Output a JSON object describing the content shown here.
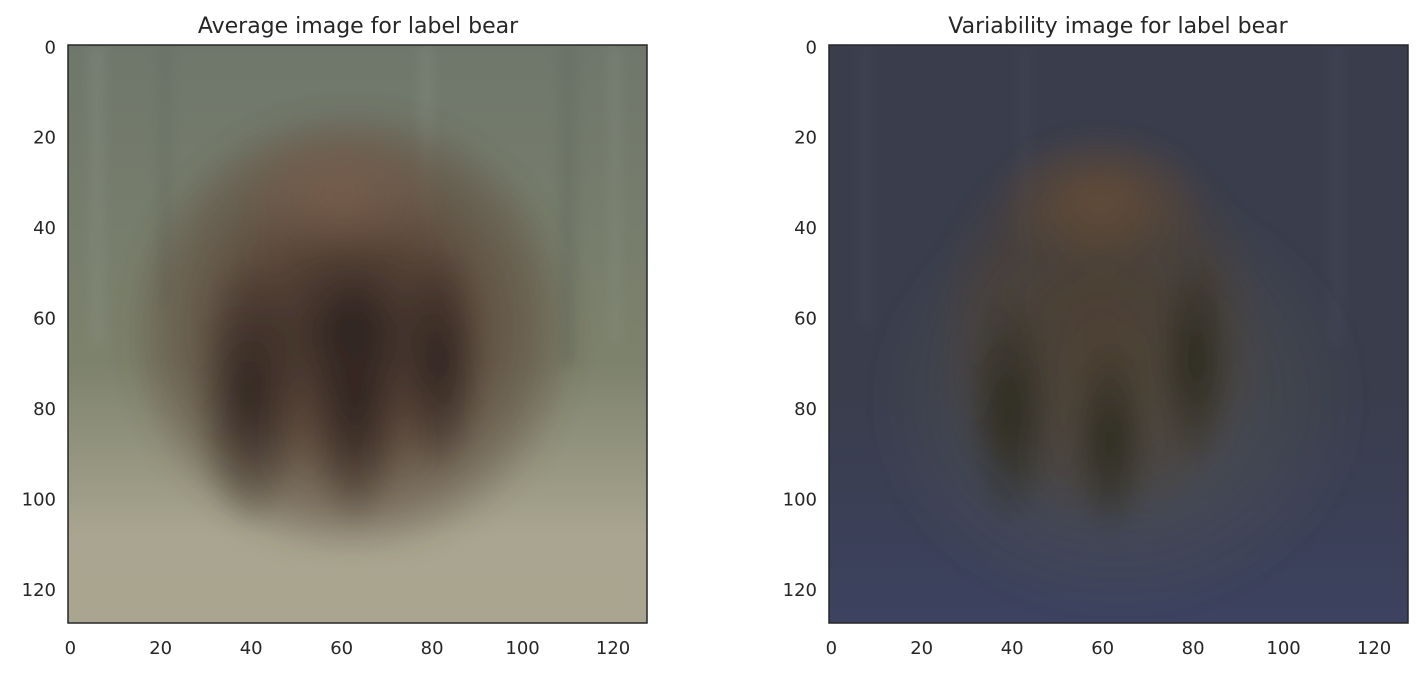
{
  "chart_data": [
    {
      "type": "heatmap",
      "title": "Average image for label bear",
      "xlabel": "",
      "ylabel": "",
      "xlim": [
        0,
        128
      ],
      "ylim": [
        128,
        0
      ],
      "xticks": [
        0,
        20,
        40,
        60,
        80,
        100,
        120
      ],
      "yticks": [
        0,
        20,
        40,
        60,
        80,
        100,
        120
      ],
      "grid": false,
      "image": {
        "content": "blurred average photo of a brown bear seen from behind, standing on a pale ground in front of a grey-green background",
        "colors": {
          "background_top": "#6f776c",
          "background_mid": "#7d826c",
          "ground": "#a9a590",
          "bear_body": "#5a4538",
          "bear_dark": "#2f2420",
          "bear_highlight": "#7a5e4c"
        }
      }
    },
    {
      "type": "heatmap",
      "title": "Variability image for label bear",
      "xlabel": "",
      "ylabel": "",
      "xlim": [
        0,
        128
      ],
      "ylim": [
        128,
        0
      ],
      "xticks": [
        0,
        20,
        40,
        60,
        80,
        100,
        120
      ],
      "yticks": [
        0,
        20,
        40,
        60,
        80,
        100,
        120
      ],
      "grid": false,
      "image": {
        "content": "dark blue-grey variability map with a faint brown bear silhouette in the centre",
        "colors": {
          "background_top": "#3a3d4c",
          "background_bottom": "#3c4260",
          "haze": "#545650",
          "bear_body": "#4d3f30",
          "bear_dark": "#2b2a1e",
          "bear_highlight": "#6a4f36"
        }
      }
    }
  ]
}
